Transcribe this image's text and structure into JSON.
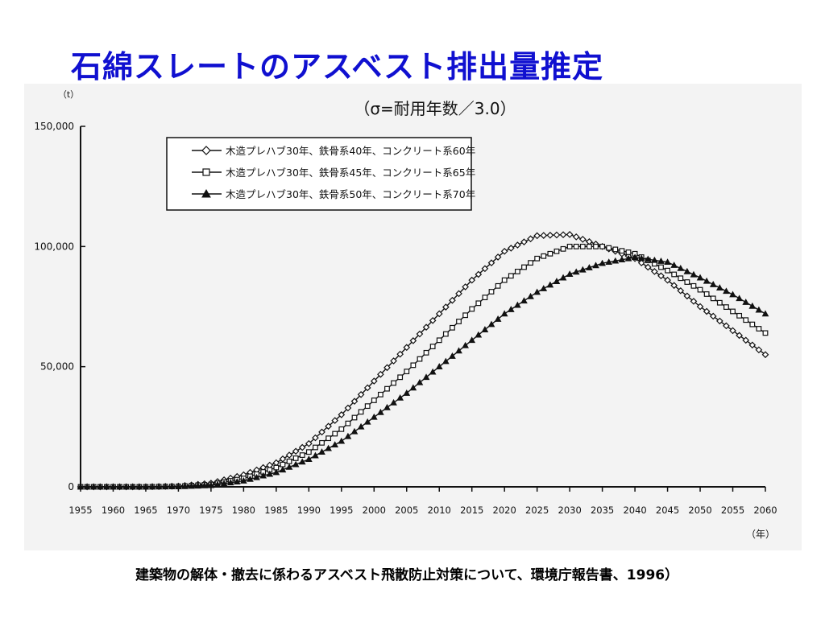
{
  "slide": {
    "title": "石綿スレートのアスベスト排出量推定",
    "source": "建築物の解体・撤去に係わるアスベスト飛散防止対策について、環境庁報告書、1996）"
  },
  "colors": {
    "title": "#1010d0",
    "series": "#111111",
    "background": "#f3f3f3"
  },
  "chart_data": {
    "type": "line",
    "title": "（σ=耐用年数／3.0）",
    "ylabel": "（t）",
    "xlabel": "（年）",
    "xlim": [
      1955,
      2060
    ],
    "ylim": [
      0,
      150000
    ],
    "y_ticks": [
      "0",
      "50,000",
      "100,000",
      "150,000"
    ],
    "x_ticks": [
      "1955",
      "1960",
      "1965",
      "1970",
      "1975",
      "1980",
      "1985",
      "1990",
      "1995",
      "2000",
      "2005",
      "2010",
      "2015",
      "2020",
      "2025",
      "2030",
      "2035",
      "2040",
      "2045",
      "2050",
      "2055",
      "2060"
    ],
    "legend_position": "top-left",
    "x": [
      1955,
      1960,
      1965,
      1970,
      1975,
      1980,
      1985,
      1990,
      1995,
      2000,
      2005,
      2010,
      2015,
      2020,
      2025,
      2030,
      2035,
      2040,
      2045,
      2050,
      2055,
      2060
    ],
    "series": [
      {
        "name": "木造プレハブ30年、鉄骨系40年、コンクリート系60年",
        "marker": "diamond",
        "values": [
          0,
          0,
          0,
          300,
          1500,
          5000,
          10000,
          18000,
          30000,
          44000,
          58000,
          72000,
          86000,
          98000,
          104500,
          105000,
          100000,
          95000,
          86000,
          75000,
          65000,
          55000
        ]
      },
      {
        "name": "木造プレハブ30年、鉄骨系45年、コンクリート系65年",
        "marker": "square",
        "values": [
          0,
          0,
          0,
          200,
          1000,
          3500,
          8000,
          14500,
          24000,
          36000,
          48000,
          61000,
          74000,
          86000,
          95000,
          100000,
          100000,
          97000,
          90000,
          82000,
          73000,
          64000
        ]
      },
      {
        "name": "木造プレハブ30年、鉄骨系50年、コンクリート系70年",
        "marker": "triangle",
        "values": [
          0,
          0,
          0,
          100,
          600,
          2500,
          6000,
          11500,
          19000,
          29000,
          39000,
          50000,
          61000,
          72000,
          81000,
          88500,
          93000,
          95500,
          93500,
          87000,
          80000,
          72000
        ]
      }
    ]
  }
}
